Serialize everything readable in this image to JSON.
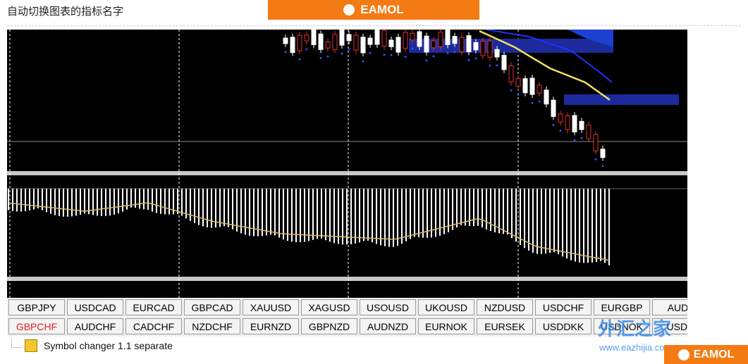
{
  "header": {
    "title": "自动切换图表的指标名字",
    "logo": "EAMOL"
  },
  "buttons": {
    "rows": [
      [
        "GBPJPY",
        "USDCAD",
        "EURCAD",
        "GBPCAD",
        "XAUUSD",
        "XAGUSD",
        "USOUSD",
        "UKOUSD",
        "NZDUSD",
        "USDCHF",
        "EURGBP",
        "AUDJ"
      ],
      [
        "GBPCHF",
        "AUDCHF",
        "CADCHF",
        "NZDCHF",
        "EURNZD",
        "GBPNZD",
        "AUDNZD",
        "EURNOK",
        "EURSEK",
        "USDDKK",
        "USDNOK",
        "USDS"
      ]
    ]
  },
  "tree": {
    "item": "Symbol changer 1.1 separate"
  },
  "watermark": {
    "name": "外汇之家",
    "url": "www.eazhijia.com",
    "logo": "EAMOL"
  }
}
